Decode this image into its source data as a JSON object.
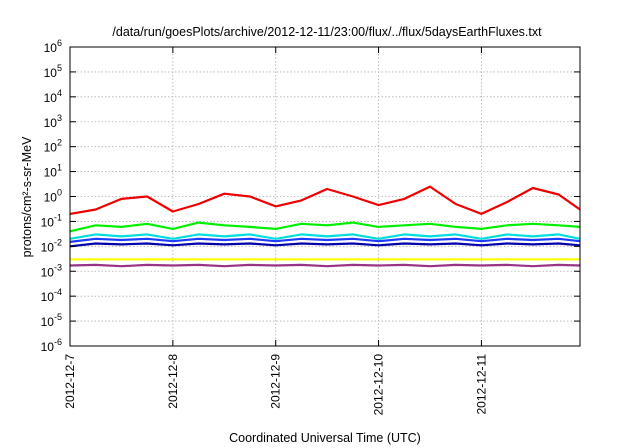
{
  "chart_data": {
    "type": "line",
    "title": "/data/run/goesPlots/archive/2012-12-11/23:00/flux/../flux/5daysEarthFluxes.txt",
    "xlabel": "Coordinated Universal Time (UTC)",
    "ylabel": "protons/cm²-s-sr-MeV",
    "yscale": "log",
    "ylim": [
      1e-06,
      1000000.0
    ],
    "xlim": [
      "2012-12-07",
      "2012-12-11 23:00"
    ],
    "x_ticks": [
      "2012-12-7",
      "2012-12-8",
      "2012-12-9",
      "2012-12-10",
      "2012-12-11"
    ],
    "y_ticks": [
      {
        "base": "10",
        "exp": "-6"
      },
      {
        "base": "10",
        "exp": "-5"
      },
      {
        "base": "10",
        "exp": "-4"
      },
      {
        "base": "10",
        "exp": "-3"
      },
      {
        "base": "10",
        "exp": "-2"
      },
      {
        "base": "10",
        "exp": "-1"
      },
      {
        "base": "10",
        "exp": "0"
      },
      {
        "base": "10",
        "exp": "1"
      },
      {
        "base": "10",
        "exp": "2"
      },
      {
        "base": "10",
        "exp": "3"
      },
      {
        "base": "10",
        "exp": "4"
      },
      {
        "base": "10",
        "exp": "5"
      },
      {
        "base": "10",
        "exp": "6"
      }
    ],
    "grid": true,
    "x": [
      "2012-12-07 00:00",
      "2012-12-07 06:00",
      "2012-12-07 12:00",
      "2012-12-07 18:00",
      "2012-12-08 00:00",
      "2012-12-08 06:00",
      "2012-12-08 12:00",
      "2012-12-08 18:00",
      "2012-12-09 00:00",
      "2012-12-09 06:00",
      "2012-12-09 12:00",
      "2012-12-09 18:00",
      "2012-12-10 00:00",
      "2012-12-10 06:00",
      "2012-12-10 12:00",
      "2012-12-10 18:00",
      "2012-12-11 00:00",
      "2012-12-11 06:00",
      "2012-12-11 12:00",
      "2012-12-11 18:00",
      "2012-12-11 23:00"
    ],
    "series": [
      {
        "color": "#ee0000",
        "values": [
          0.2,
          0.3,
          0.8,
          1.0,
          0.25,
          0.5,
          1.3,
          1.0,
          0.4,
          0.7,
          2.0,
          1.0,
          0.45,
          0.8,
          2.5,
          0.5,
          0.2,
          0.6,
          2.2,
          1.2,
          0.3
        ]
      },
      {
        "color": "#00ee00",
        "values": [
          0.04,
          0.07,
          0.06,
          0.08,
          0.05,
          0.09,
          0.07,
          0.06,
          0.05,
          0.08,
          0.07,
          0.09,
          0.06,
          0.07,
          0.08,
          0.06,
          0.05,
          0.07,
          0.08,
          0.07,
          0.06
        ]
      },
      {
        "color": "#00dddd",
        "values": [
          0.02,
          0.03,
          0.025,
          0.03,
          0.02,
          0.03,
          0.025,
          0.03,
          0.02,
          0.03,
          0.025,
          0.03,
          0.02,
          0.03,
          0.025,
          0.03,
          0.02,
          0.03,
          0.025,
          0.03,
          0.02
        ]
      },
      {
        "color": "#1e3cff",
        "values": [
          0.015,
          0.02,
          0.018,
          0.02,
          0.016,
          0.02,
          0.018,
          0.02,
          0.016,
          0.02,
          0.018,
          0.02,
          0.016,
          0.02,
          0.018,
          0.02,
          0.016,
          0.02,
          0.018,
          0.02,
          0.016
        ]
      },
      {
        "color": "#0000aa",
        "values": [
          0.01,
          0.013,
          0.012,
          0.013,
          0.011,
          0.013,
          0.012,
          0.013,
          0.011,
          0.013,
          0.012,
          0.013,
          0.011,
          0.013,
          0.012,
          0.013,
          0.011,
          0.013,
          0.012,
          0.013,
          0.011
        ]
      },
      {
        "color": "#ffff00",
        "values": [
          0.003,
          0.003,
          0.003,
          0.003,
          0.003,
          0.003,
          0.003,
          0.003,
          0.003,
          0.003,
          0.003,
          0.003,
          0.003,
          0.003,
          0.003,
          0.003,
          0.003,
          0.003,
          0.003,
          0.003,
          0.003
        ]
      },
      {
        "color": "#993388",
        "values": [
          0.0017,
          0.0018,
          0.0016,
          0.0018,
          0.0017,
          0.0018,
          0.0016,
          0.0018,
          0.0017,
          0.0018,
          0.0016,
          0.0018,
          0.0017,
          0.0018,
          0.0016,
          0.0018,
          0.0017,
          0.0018,
          0.0016,
          0.0018,
          0.0017
        ]
      }
    ]
  }
}
